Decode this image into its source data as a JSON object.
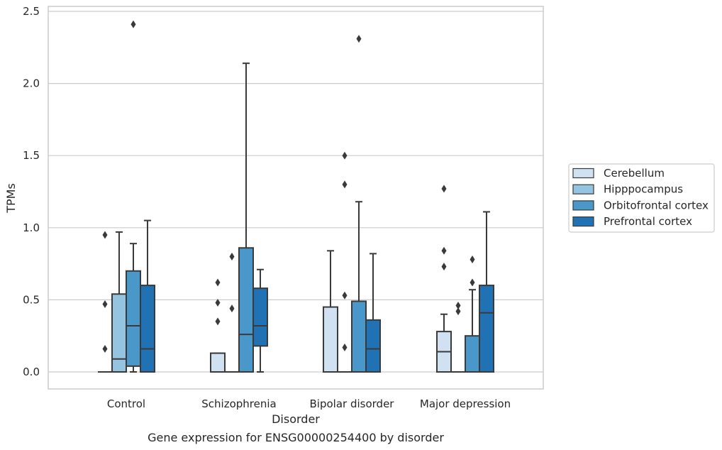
{
  "chart_data": {
    "type": "boxplot",
    "title": "Gene expression for ENSG00000254400 by disorder",
    "xlabel": "Disorder",
    "ylabel": "TPMs",
    "ylim": [
      -0.12,
      2.54
    ],
    "yticks": [
      0.0,
      0.5,
      1.0,
      1.5,
      2.0,
      2.5
    ],
    "ytick_labels": [
      "0.0",
      "0.5",
      "1.0",
      "1.5",
      "2.0",
      "2.5"
    ],
    "grid": "horizontal",
    "legend_position": "center-right",
    "categories": [
      "Control",
      "Schizophrenia",
      "Bipolar disorder",
      "Major depression"
    ],
    "series": [
      {
        "name": "Cerebellum",
        "color": "#d0e1f2",
        "boxes": [
          {
            "whislo": 0.0,
            "q1": 0.0,
            "med": 0.0,
            "q3": 0.0,
            "whishi": 0.0,
            "fliers": [
              0.16,
              0.47,
              0.95
            ]
          },
          {
            "whislo": 0.0,
            "q1": 0.0,
            "med": 0.0,
            "q3": 0.13,
            "whishi": 0.13,
            "fliers": [
              0.35,
              0.48,
              0.62
            ]
          },
          {
            "whislo": 0.0,
            "q1": 0.0,
            "med": 0.0,
            "q3": 0.45,
            "whishi": 0.84,
            "fliers": []
          },
          {
            "whislo": 0.0,
            "q1": 0.0,
            "med": 0.14,
            "q3": 0.28,
            "whishi": 0.4,
            "fliers": [
              0.73,
              0.84,
              1.27
            ]
          }
        ]
      },
      {
        "name": "Hipppocampus",
        "color": "#94c4df",
        "boxes": [
          {
            "whislo": 0.0,
            "q1": 0.0,
            "med": 0.09,
            "q3": 0.54,
            "whishi": 0.97,
            "fliers": []
          },
          {
            "whislo": 0.0,
            "q1": 0.0,
            "med": 0.0,
            "q3": 0.0,
            "whishi": 0.0,
            "fliers": [
              0.44,
              0.8
            ]
          },
          {
            "whislo": 0.0,
            "q1": 0.0,
            "med": 0.0,
            "q3": 0.0,
            "whishi": 0.0,
            "fliers": [
              0.17,
              0.53,
              1.3,
              1.5
            ]
          },
          {
            "whislo": 0.0,
            "q1": 0.0,
            "med": 0.0,
            "q3": 0.0,
            "whishi": 0.0,
            "fliers": [
              0.42,
              0.46
            ]
          }
        ]
      },
      {
        "name": "Orbitofrontal cortex",
        "color": "#4a98c9",
        "boxes": [
          {
            "whislo": 0.0,
            "q1": 0.04,
            "med": 0.32,
            "q3": 0.7,
            "whishi": 0.89,
            "fliers": [
              2.41
            ]
          },
          {
            "whislo": 0.0,
            "q1": 0.0,
            "med": 0.26,
            "q3": 0.86,
            "whishi": 2.14,
            "fliers": []
          },
          {
            "whislo": 0.0,
            "q1": 0.0,
            "med": 0.0,
            "q3": 0.49,
            "whishi": 1.18,
            "fliers": [
              2.31
            ]
          },
          {
            "whislo": 0.0,
            "q1": 0.0,
            "med": 0.0,
            "q3": 0.25,
            "whishi": 0.57,
            "fliers": [
              0.62,
              0.78
            ]
          }
        ]
      },
      {
        "name": "Prefrontal cortex",
        "color": "#2171b5",
        "boxes": [
          {
            "whislo": 0.0,
            "q1": 0.0,
            "med": 0.16,
            "q3": 0.6,
            "whishi": 1.05,
            "fliers": []
          },
          {
            "whislo": 0.0,
            "q1": 0.18,
            "med": 0.32,
            "q3": 0.58,
            "whishi": 0.71,
            "fliers": []
          },
          {
            "whislo": 0.0,
            "q1": 0.0,
            "med": 0.16,
            "q3": 0.36,
            "whishi": 0.82,
            "fliers": []
          },
          {
            "whislo": 0.0,
            "q1": 0.0,
            "med": 0.41,
            "q3": 0.6,
            "whishi": 1.11,
            "fliers": []
          }
        ]
      }
    ],
    "line_color": "#3a3a3a",
    "grid_color": "#cccccc",
    "frame_color": "#cccccc"
  }
}
